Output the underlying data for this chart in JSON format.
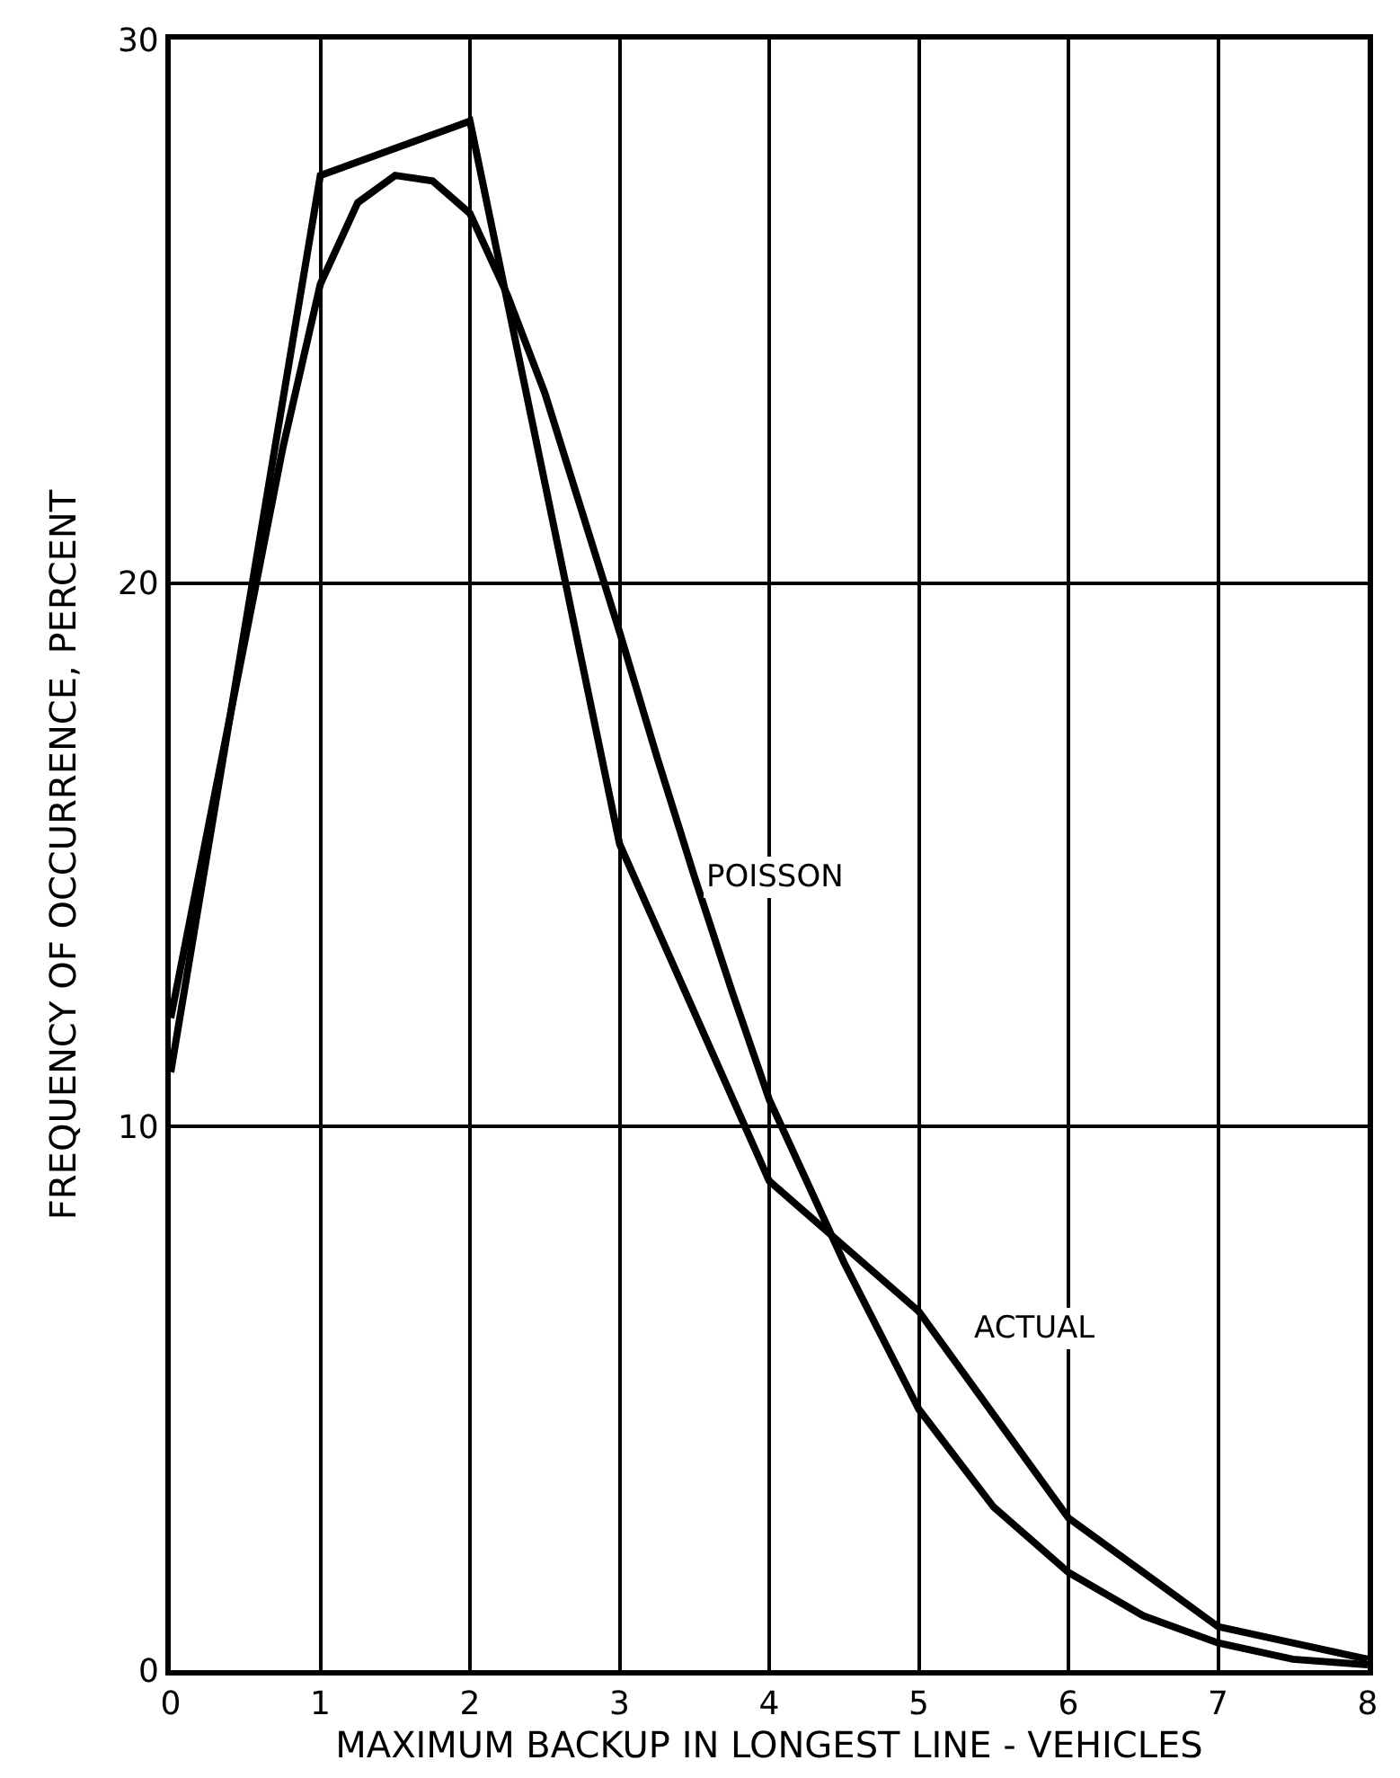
{
  "chart_data": {
    "type": "line",
    "xlabel": "MAXIMUM BACKUP IN LONGEST LINE - VEHICLES",
    "ylabel": "FREQUENCY OF OCCURRENCE, PERCENT",
    "xlim": [
      0,
      8
    ],
    "ylim": [
      0,
      30
    ],
    "xticks": [
      0,
      1,
      2,
      3,
      4,
      5,
      6,
      7,
      8
    ],
    "yticks": [
      0,
      10,
      20,
      30
    ],
    "grid": true,
    "legend": false,
    "marker": "none",
    "line_style": "solid",
    "series": [
      {
        "name": "POISSON",
        "color": "#000000",
        "x": [
          0,
          0.25,
          0.5,
          0.75,
          1,
          1.25,
          1.5,
          1.75,
          2,
          2.25,
          2.5,
          2.75,
          3,
          3.25,
          3.5,
          3.75,
          4,
          4.5,
          5,
          5.5,
          6,
          6.5,
          7,
          7.5,
          8
        ],
        "values": [
          12,
          15.5,
          19,
          22.5,
          25.5,
          27,
          27.5,
          27.4,
          26.8,
          25.3,
          23.5,
          21.3,
          19.1,
          16.8,
          14.6,
          12.5,
          10.5,
          7.5,
          4.8,
          3,
          1.8,
          1,
          0.5,
          0.2,
          0.1
        ]
      },
      {
        "name": "ACTUAL",
        "color": "#000000",
        "x": [
          0,
          1,
          2,
          3,
          4,
          5,
          6,
          7,
          8
        ],
        "values": [
          11,
          27.5,
          28.5,
          15.2,
          9,
          6.6,
          2.8,
          0.8,
          0.2
        ]
      }
    ]
  }
}
